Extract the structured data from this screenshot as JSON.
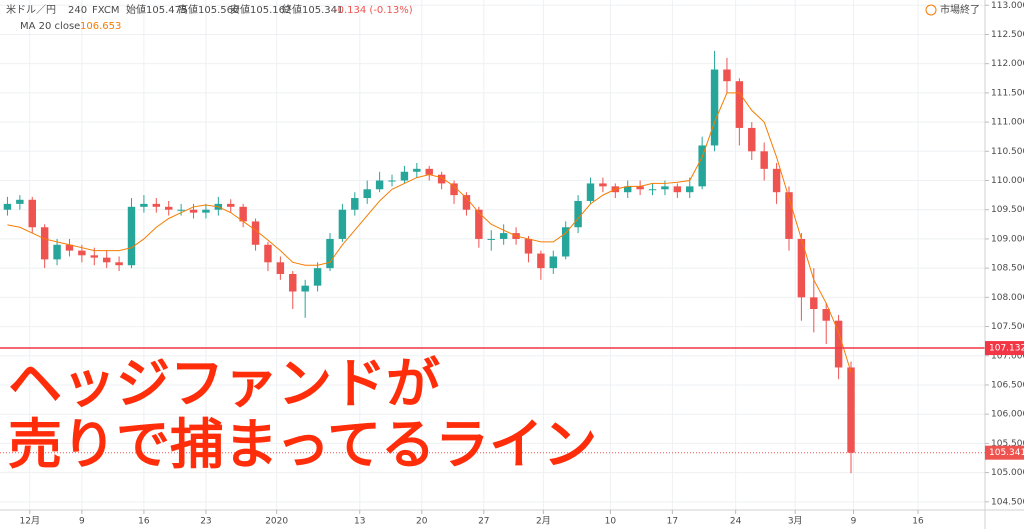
{
  "chart_data": {
    "type": "candlestick",
    "title": "米ドル／円",
    "interval": "240",
    "source": "FXCM",
    "ohlc_labels": [
      "始値105.475",
      "高値105.560",
      "安値105.162",
      "終値105.341"
    ],
    "change": "-0.134 (-0.13%)",
    "status": "市場終了",
    "annotation": [
      "ヘッジファンドが",
      "売りで捕まってるライン"
    ],
    "up_color": "#26a69a",
    "down_color": "#ef5350",
    "x": [
      -1,
      0,
      1,
      2,
      3,
      4,
      5,
      6,
      7,
      8,
      9,
      10,
      11,
      12,
      13,
      14,
      15,
      16,
      17,
      18,
      19,
      20,
      21,
      22,
      23,
      24,
      25,
      26,
      27,
      28,
      29,
      30,
      31,
      32,
      33,
      34,
      35,
      36,
      37,
      38,
      39,
      40,
      41,
      42,
      43,
      44,
      45,
      46,
      47,
      48,
      49,
      50,
      51,
      52,
      53,
      54,
      55,
      56,
      57,
      58,
      59,
      60,
      61,
      62,
      63,
      64,
      65,
      66,
      67
    ],
    "open": [
      109.5,
      109.6,
      109.67,
      109.2,
      108.65,
      108.9,
      108.8,
      108.72,
      108.68,
      108.6,
      108.55,
      109.55,
      109.6,
      109.55,
      109.5,
      109.5,
      109.45,
      109.5,
      109.6,
      109.55,
      109.3,
      108.9,
      108.6,
      108.4,
      108.1,
      108.2,
      108.5,
      109.0,
      109.5,
      109.7,
      109.85,
      110.0,
      110.0,
      110.15,
      110.2,
      110.1,
      109.95,
      109.75,
      109.5,
      109.0,
      109.0,
      109.1,
      109.0,
      108.75,
      108.5,
      108.7,
      109.2,
      109.65,
      109.95,
      109.9,
      109.8,
      109.9,
      109.85,
      109.85,
      109.9,
      109.8,
      109.9,
      110.6,
      111.9,
      111.7,
      110.9,
      110.5,
      110.2,
      109.8,
      109.0,
      108.0,
      107.8,
      107.6,
      106.8
    ],
    "high": [
      109.72,
      109.75,
      109.72,
      109.25,
      109.0,
      109.0,
      108.9,
      108.85,
      108.8,
      108.7,
      109.7,
      109.75,
      109.7,
      109.65,
      109.6,
      109.6,
      109.6,
      109.72,
      109.68,
      109.6,
      109.35,
      108.95,
      108.7,
      108.45,
      108.3,
      108.6,
      109.1,
      109.6,
      109.8,
      110.0,
      110.15,
      110.1,
      110.25,
      110.3,
      110.25,
      110.15,
      110.0,
      109.8,
      109.55,
      109.15,
      109.25,
      109.2,
      109.05,
      108.8,
      108.8,
      109.3,
      109.75,
      110.05,
      110.05,
      109.95,
      110.0,
      110.0,
      109.95,
      110.0,
      109.95,
      110.05,
      110.75,
      112.22,
      112.1,
      111.75,
      111.0,
      110.65,
      110.3,
      109.9,
      109.1,
      108.5,
      107.9,
      107.7,
      106.9
    ],
    "low": [
      109.4,
      109.5,
      109.1,
      108.5,
      108.55,
      108.7,
      108.6,
      108.55,
      108.5,
      108.45,
      108.5,
      109.45,
      109.45,
      109.4,
      109.4,
      109.35,
      109.35,
      109.4,
      109.45,
      109.2,
      108.8,
      108.45,
      108.3,
      107.8,
      107.65,
      108.1,
      108.45,
      108.95,
      109.4,
      109.6,
      109.8,
      109.9,
      109.95,
      110.05,
      110.0,
      109.85,
      109.6,
      109.4,
      108.85,
      108.8,
      108.9,
      108.9,
      108.6,
      108.3,
      108.4,
      108.65,
      109.1,
      109.6,
      109.8,
      109.7,
      109.7,
      109.75,
      109.75,
      109.75,
      109.7,
      109.7,
      109.85,
      110.5,
      111.5,
      110.6,
      110.35,
      110.0,
      109.6,
      108.8,
      107.6,
      107.4,
      107.2,
      106.6,
      104.99
    ],
    "close": [
      109.6,
      109.67,
      109.2,
      108.65,
      108.9,
      108.8,
      108.72,
      108.68,
      108.6,
      108.55,
      109.55,
      109.6,
      109.55,
      109.5,
      109.5,
      109.45,
      109.5,
      109.6,
      109.55,
      109.3,
      108.9,
      108.6,
      108.4,
      108.1,
      108.2,
      108.5,
      109.0,
      109.5,
      109.7,
      109.85,
      110.0,
      110.0,
      110.15,
      110.2,
      110.1,
      109.95,
      109.75,
      109.5,
      109.0,
      109.0,
      109.1,
      109.0,
      108.75,
      108.5,
      108.7,
      109.2,
      109.65,
      109.95,
      109.9,
      109.8,
      109.9,
      109.85,
      109.85,
      109.9,
      109.8,
      109.9,
      110.6,
      111.9,
      111.7,
      110.9,
      110.5,
      110.2,
      109.8,
      109.0,
      108.0,
      107.8,
      107.6,
      106.8,
      105.341
    ],
    "series": [
      {
        "name": "MA 20 close",
        "color": "#f57c00",
        "last_value": 106.653,
        "values": [
          109.24,
          109.2,
          109.1,
          109.0,
          108.95,
          108.9,
          108.85,
          108.8,
          108.8,
          108.8,
          108.85,
          109.0,
          109.2,
          109.35,
          109.45,
          109.55,
          109.58,
          109.55,
          109.45,
          109.3,
          109.15,
          108.98,
          108.8,
          108.6,
          108.55,
          108.55,
          108.6,
          108.9,
          109.15,
          109.4,
          109.65,
          109.85,
          109.95,
          110.05,
          110.1,
          110.05,
          109.9,
          109.7,
          109.45,
          109.25,
          109.15,
          109.05,
          109.0,
          108.95,
          108.95,
          109.1,
          109.35,
          109.6,
          109.75,
          109.85,
          109.9,
          109.9,
          109.95,
          109.95,
          109.97,
          110.0,
          110.4,
          111.0,
          111.5,
          111.5,
          111.2,
          111.0,
          110.4,
          109.7,
          109.0,
          108.3,
          107.9,
          107.4,
          106.72
        ]
      }
    ],
    "price_line": {
      "value": 107.132,
      "color": "#f23645"
    },
    "last_price": 105.341,
    "xlim": [
      -1.6,
      77.8
    ],
    "ylim": [
      104.36,
      113.09
    ],
    "xticks": [
      {
        "value": 0.8,
        "label": "12月"
      },
      {
        "value": 5,
        "label": "9"
      },
      {
        "value": 10,
        "label": "16"
      },
      {
        "value": 15,
        "label": "23"
      },
      {
        "value": 20.7,
        "label": "2020"
      },
      {
        "value": 27.4,
        "label": "13"
      },
      {
        "value": 32.4,
        "label": "20"
      },
      {
        "value": 37.4,
        "label": "27"
      },
      {
        "value": 42.2,
        "label": "2月"
      },
      {
        "value": 47.6,
        "label": "10"
      },
      {
        "value": 52.6,
        "label": "17"
      },
      {
        "value": 57.7,
        "label": "24"
      },
      {
        "value": 62.5,
        "label": "3月"
      },
      {
        "value": 67.2,
        "label": "9"
      },
      {
        "value": 72.4,
        "label": "16"
      }
    ],
    "yticks": [
      {
        "value": 104.5,
        "label": "104.500"
      },
      {
        "value": 105,
        "label": "105.000"
      },
      {
        "value": 105.5,
        "label": "105.500"
      },
      {
        "value": 106,
        "label": "106.000"
      },
      {
        "value": 106.5,
        "label": "106.500"
      },
      {
        "value": 107,
        "label": "107.000"
      },
      {
        "value": 107.5,
        "label": "107.500"
      },
      {
        "value": 108,
        "label": "108.000"
      },
      {
        "value": 108.5,
        "label": "108.500"
      },
      {
        "value": 109,
        "label": "109.000"
      },
      {
        "value": 109.5,
        "label": "109.500"
      },
      {
        "value": 110,
        "label": "110.000"
      },
      {
        "value": 110.5,
        "label": "110.500"
      },
      {
        "value": 111,
        "label": "111.000"
      },
      {
        "value": 111.5,
        "label": "111.500"
      },
      {
        "value": 112,
        "label": "112.000"
      },
      {
        "value": 112.5,
        "label": "112.500"
      },
      {
        "value": 113,
        "label": "113.000"
      }
    ],
    "grid": true
  }
}
